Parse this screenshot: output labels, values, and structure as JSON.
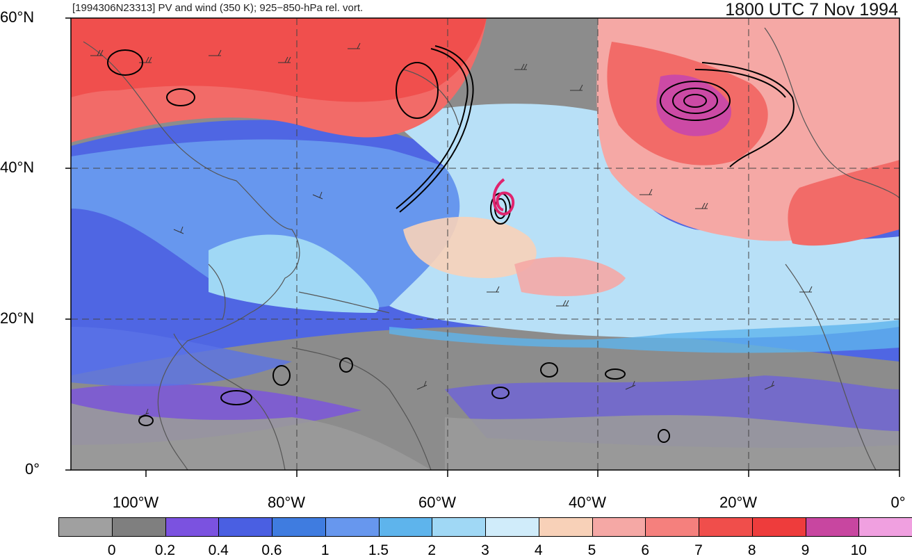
{
  "header": {
    "left": "[1994306N23313] PV and wind (350 K); 925−850-hPa rel. vort.",
    "right": "1800 UTC 7 Nov 1994"
  },
  "lat_labels": [
    "60°N",
    "40°N",
    "20°N",
    "0°"
  ],
  "lon_labels": [
    "100°W",
    "80°W",
    "60°W",
    "40°W",
    "20°W",
    "0°"
  ],
  "colorbar": {
    "colors": [
      "#a0a0a0",
      "#7f7f7f",
      "#7b52e0",
      "#4a5fe2",
      "#3f7ce0",
      "#6797ee",
      "#5eb4ec",
      "#a0d8f5",
      "#d0ecfa",
      "#f8d1b8",
      "#f5a8a5",
      "#f5807d",
      "#f04e4b",
      "#ee3c3c",
      "#c846a0",
      "#f0a0e0"
    ],
    "labels": [
      "0",
      "0.2",
      "0.4",
      "0.6",
      "1",
      "1.5",
      "2",
      "3",
      "4",
      "5",
      "6",
      "7",
      "8",
      "9",
      "10"
    ]
  },
  "colors": {
    "low_pv": "#8c8c8c",
    "mid_pv": "#5a73e6",
    "light_pv": "#b8e0f7",
    "high_pv": "#f26b68",
    "max_pv": "#cc4aa5",
    "storm_track": "#e0246e"
  }
}
